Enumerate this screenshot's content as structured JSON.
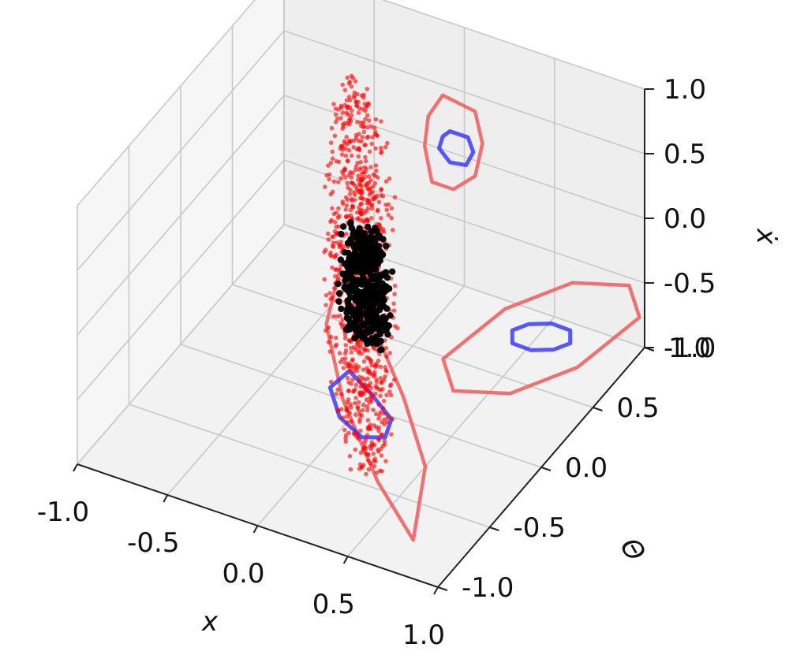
{
  "chart_data": {
    "type": "scatter3d",
    "title": "",
    "xlabel": "x",
    "ylabel": "Θ",
    "zlabel": "ẋ",
    "xlim": [
      -1.0,
      1.0
    ],
    "ylim": [
      -1.0,
      1.0
    ],
    "zlim": [
      -1.0,
      1.0
    ],
    "x_ticks": [
      "-1.0",
      "-0.5",
      "0.0",
      "0.5",
      "1.0"
    ],
    "y_ticks": [
      "-1.0",
      "-0.5",
      "0.0",
      "0.5",
      "1.0"
    ],
    "z_ticks": [
      "-1.0",
      "-0.5",
      "0.0",
      "0.5",
      "1.0"
    ],
    "grid": true,
    "colors": {
      "outer": "#ff0000",
      "inner": "#000000",
      "outer_projection": "#f05a5a",
      "inner_projection": "#2f2fff"
    },
    "series": [
      {
        "kind": "point-cloud",
        "color": "#ff0000",
        "shape": "thin-slab",
        "center": [
          0.0,
          0.0,
          0.0
        ],
        "axes": [
          [
            0.55,
            -0.9,
            -0.45
          ],
          [
            0.12,
            0.05,
            -0.08
          ]
        ],
        "count": 900
      },
      {
        "kind": "point-cloud",
        "color": "#000000",
        "shape": "small-ellipsoid",
        "center": [
          0.05,
          -0.05,
          0.0
        ],
        "axes": [
          [
            0.16,
            -0.28,
            -0.14
          ],
          [
            0.07,
            0.03,
            -0.03
          ]
        ],
        "count": 450
      },
      {
        "kind": "projection-polygon",
        "plane": "x-max wall (theta, xdot)",
        "color": "#f05a5a",
        "points": [
          [
            -0.95,
            0.72
          ],
          [
            -0.35,
            0.55
          ],
          [
            0.3,
            0.15
          ],
          [
            0.85,
            -0.38
          ],
          [
            0.95,
            -0.72
          ],
          [
            0.35,
            -0.55
          ],
          [
            -0.3,
            -0.15
          ],
          [
            -0.85,
            0.38
          ]
        ]
      },
      {
        "kind": "projection-polygon",
        "plane": "x-max wall (theta, xdot)",
        "color": "#2f2fff",
        "points": [
          [
            -0.28,
            0.32
          ],
          [
            -0.12,
            0.22
          ],
          [
            0.1,
            0.02
          ],
          [
            0.28,
            -0.2
          ],
          [
            0.28,
            -0.3
          ],
          [
            0.12,
            -0.2
          ],
          [
            -0.1,
            0.0
          ],
          [
            -0.28,
            0.22
          ]
        ]
      },
      {
        "kind": "projection-polygon",
        "plane": "theta-max wall (x, xdot)",
        "color": "#f05a5a",
        "points": [
          [
            -0.12,
            0.42
          ],
          [
            0.06,
            0.38
          ],
          [
            0.1,
            0.15
          ],
          [
            0.06,
            -0.12
          ],
          [
            -0.06,
            -0.28
          ],
          [
            -0.18,
            -0.28
          ],
          [
            -0.22,
            -0.02
          ],
          [
            -0.2,
            0.22
          ]
        ]
      },
      {
        "kind": "projection-polygon",
        "plane": "theta-max wall (x, xdot)",
        "color": "#2f2fff",
        "points": [
          [
            -0.08,
            0.16
          ],
          [
            0.02,
            0.16
          ],
          [
            0.05,
            0.06
          ],
          [
            0.01,
            -0.06
          ],
          [
            -0.08,
            -0.08
          ],
          [
            -0.14,
            0.0
          ],
          [
            -0.12,
            0.1
          ]
        ]
      },
      {
        "kind": "projection-polygon",
        "plane": "xdot-min floor (x, theta)",
        "color": "#f05a5a",
        "points": [
          [
            -0.62,
            0.9
          ],
          [
            -0.28,
            0.58
          ],
          [
            0.15,
            0.15
          ],
          [
            0.5,
            -0.25
          ],
          [
            0.72,
            -0.75
          ],
          [
            0.35,
            -0.45
          ],
          [
            -0.1,
            0.0
          ],
          [
            -0.45,
            0.45
          ]
        ]
      },
      {
        "kind": "projection-polygon",
        "plane": "xdot-min floor (x, theta)",
        "color": "#2f2fff",
        "points": [
          [
            -0.18,
            0.2
          ],
          [
            0.0,
            0.1
          ],
          [
            0.18,
            -0.02
          ],
          [
            0.22,
            -0.15
          ],
          [
            0.12,
            -0.2
          ],
          [
            -0.05,
            -0.12
          ],
          [
            -0.2,
            0.05
          ]
        ]
      }
    ]
  }
}
